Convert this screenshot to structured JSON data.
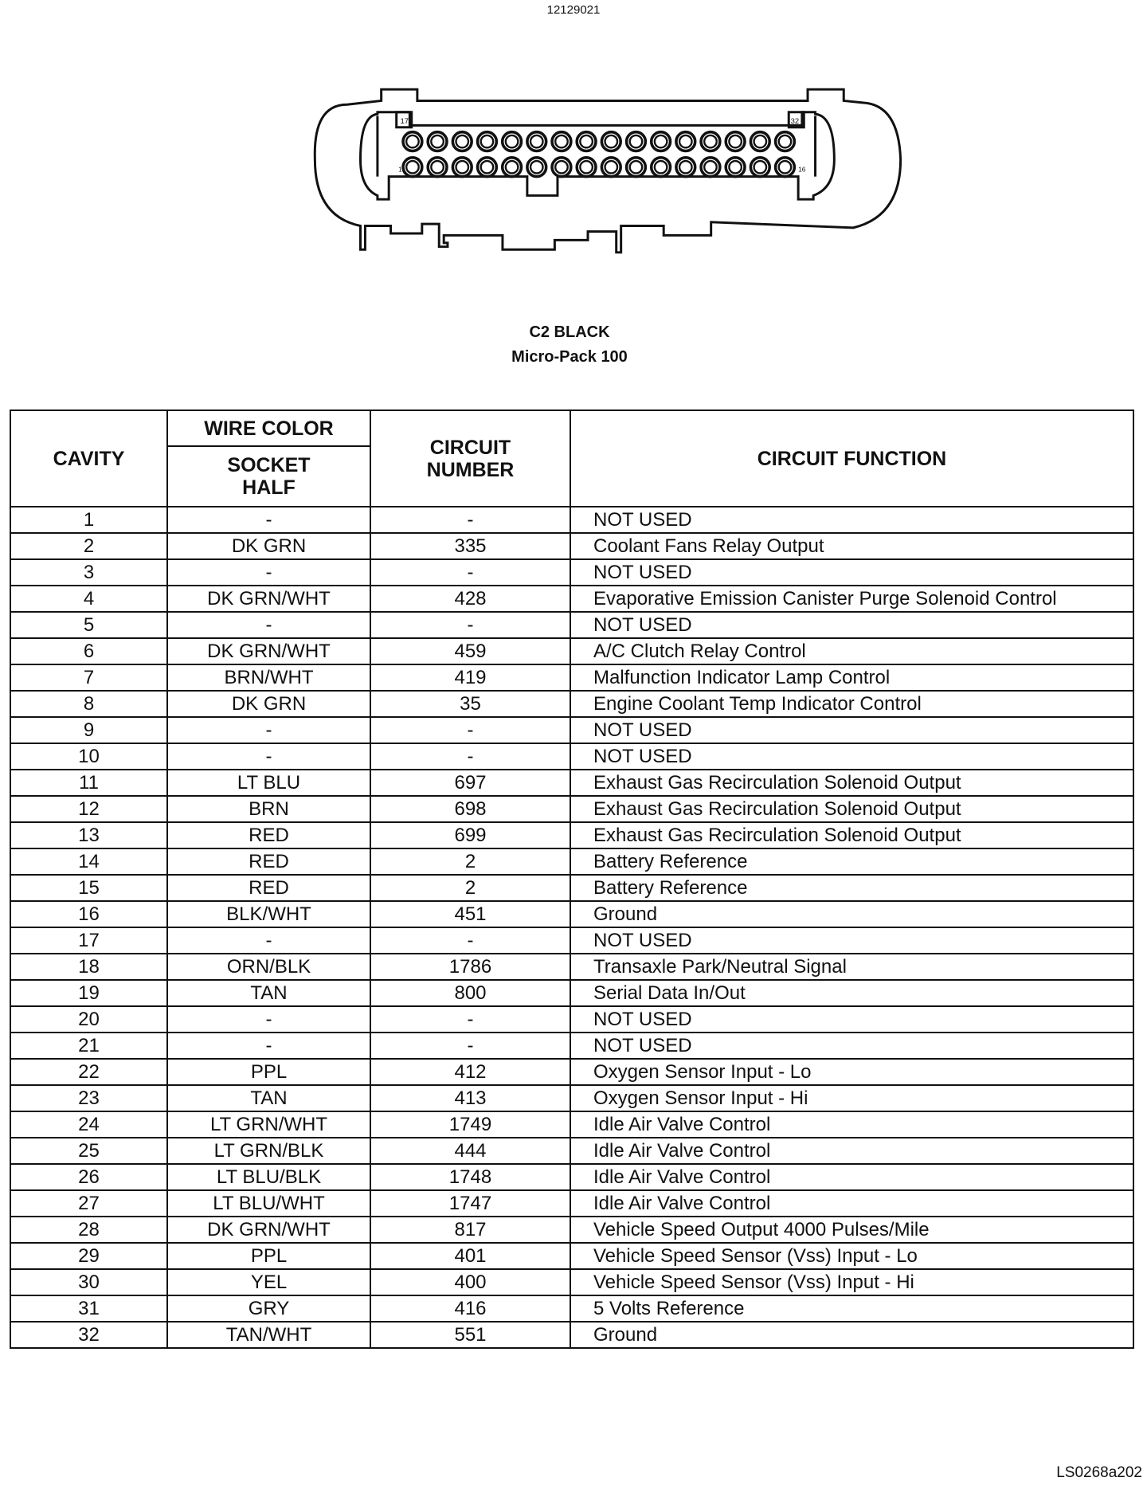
{
  "part_number": "12129021",
  "connector": {
    "name": "C2 BLACK",
    "type": "Micro-Pack 100",
    "pin_labels": [
      "1",
      "16",
      "17",
      "32"
    ],
    "rows": 2,
    "pins_per_row": 16
  },
  "table": {
    "headers": {
      "cavity": "CAVITY",
      "wire_color": "WIRE COLOR",
      "socket_half": "SOCKET HALF",
      "circuit_number": "CIRCUIT NUMBER",
      "circuit_function": "CIRCUIT FUNCTION"
    },
    "rows": [
      [
        "1",
        "-",
        "-",
        "NOT USED"
      ],
      [
        "2",
        "DK GRN",
        "335",
        "Coolant Fans Relay Output"
      ],
      [
        "3",
        "-",
        "-",
        "NOT USED"
      ],
      [
        "4",
        "DK GRN/WHT",
        "428",
        "Evaporative Emission Canister Purge Solenoid Control"
      ],
      [
        "5",
        "-",
        "-",
        "NOT USED"
      ],
      [
        "6",
        "DK GRN/WHT",
        "459",
        "A/C Clutch Relay Control"
      ],
      [
        "7",
        "BRN/WHT",
        "419",
        "Malfunction Indicator Lamp Control"
      ],
      [
        "8",
        "DK GRN",
        "35",
        "Engine Coolant Temp Indicator Control"
      ],
      [
        "9",
        "-",
        "-",
        "NOT USED"
      ],
      [
        "10",
        "-",
        "-",
        "NOT USED"
      ],
      [
        "11",
        "LT BLU",
        "697",
        "Exhaust Gas Recirculation Solenoid Output"
      ],
      [
        "12",
        "BRN",
        "698",
        "Exhaust Gas Recirculation Solenoid Output"
      ],
      [
        "13",
        "RED",
        "699",
        "Exhaust Gas Recirculation Solenoid Output"
      ],
      [
        "14",
        "RED",
        "2",
        "Battery Reference"
      ],
      [
        "15",
        "RED",
        "2",
        "Battery Reference"
      ],
      [
        "16",
        "BLK/WHT",
        "451",
        "Ground"
      ],
      [
        "17",
        "-",
        "-",
        "NOT USED"
      ],
      [
        "18",
        "ORN/BLK",
        "1786",
        "Transaxle Park/Neutral Signal"
      ],
      [
        "19",
        "TAN",
        "800",
        "Serial Data In/Out"
      ],
      [
        "20",
        "-",
        "-",
        "NOT USED"
      ],
      [
        "21",
        "-",
        "-",
        "NOT USED"
      ],
      [
        "22",
        "PPL",
        "412",
        "Oxygen Sensor Input - Lo"
      ],
      [
        "23",
        "TAN",
        "413",
        "Oxygen Sensor Input - Hi"
      ],
      [
        "24",
        "LT GRN/WHT",
        "1749",
        "Idle Air Valve Control"
      ],
      [
        "25",
        "LT GRN/BLK",
        "444",
        "Idle Air Valve Control"
      ],
      [
        "26",
        "LT BLU/BLK",
        "1748",
        "Idle Air Valve Control"
      ],
      [
        "27",
        "LT BLU/WHT",
        "1747",
        "Idle Air Valve Control"
      ],
      [
        "28",
        "DK GRN/WHT",
        "817",
        "Vehicle Speed Output 4000 Pulses/Mile"
      ],
      [
        "29",
        "PPL",
        "401",
        "Vehicle Speed Sensor (Vss) Input - Lo"
      ],
      [
        "30",
        "YEL",
        "400",
        "Vehicle Speed Sensor (Vss) Input - Hi"
      ],
      [
        "31",
        "GRY",
        "416",
        "5 Volts Reference"
      ],
      [
        "32",
        "TAN/WHT",
        "551",
        "Ground"
      ]
    ]
  },
  "footer_code": "LS0268a202"
}
